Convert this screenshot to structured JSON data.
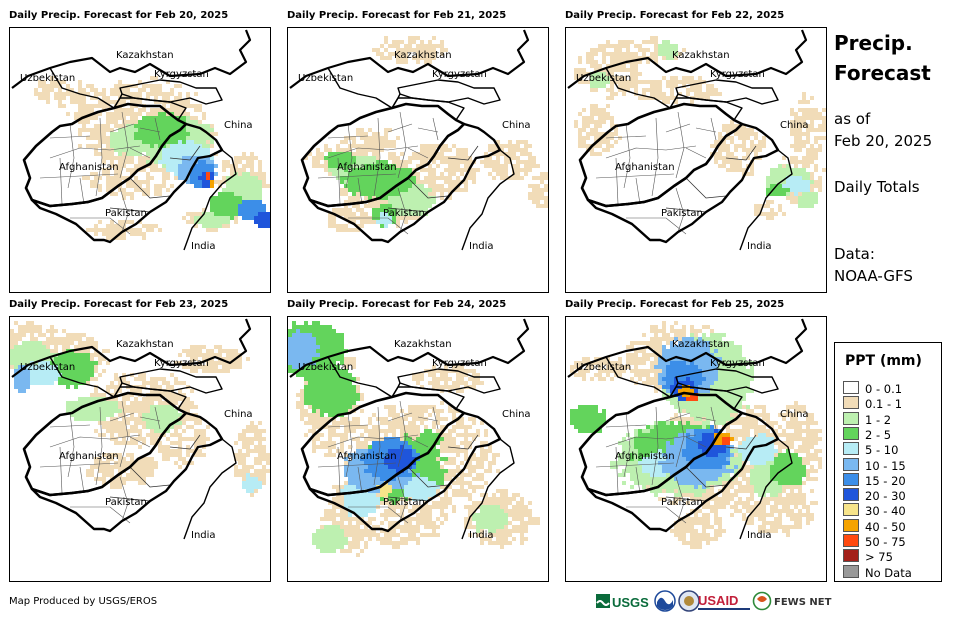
{
  "panels": [
    {
      "title": "Daily Precip. Forecast for Feb 20, 2025"
    },
    {
      "title": "Daily Precip. Forecast for Feb 21, 2025"
    },
    {
      "title": "Daily Precip. Forecast for Feb 22, 2025"
    },
    {
      "title": "Daily Precip. Forecast for Feb 23, 2025"
    },
    {
      "title": "Daily Precip. Forecast for Feb 24, 2025"
    },
    {
      "title": "Daily Precip. Forecast for Feb 25, 2025"
    }
  ],
  "map_labels": {
    "kazakhstan": "Kazakhstan",
    "uzbekistan": "Uzbekistan",
    "kyrgyzstan": "Kyrgyzstan",
    "china": "China",
    "afghanistan": "Afghanistan",
    "pakistan": "Pakistan",
    "india": "India"
  },
  "sidebar": {
    "title_line1": "Precip.",
    "title_line2": "Forecast",
    "asof_line1": "as of",
    "asof_line2": "Feb 20, 2025",
    "daily": "Daily Totals",
    "data_line1": "Data:",
    "data_line2": "NOAA-GFS"
  },
  "legend": {
    "title": "PPT (mm)",
    "items": [
      {
        "label": "0 - 0.1",
        "color": "#ffffff"
      },
      {
        "label": "0.1 - 1",
        "color": "#f1dcb8"
      },
      {
        "label": "1 - 2",
        "color": "#bdf0b0"
      },
      {
        "label": "2 - 5",
        "color": "#63d45c"
      },
      {
        "label": "5 - 10",
        "color": "#b7ecf5"
      },
      {
        "label": "10 - 15",
        "color": "#7ab8f0"
      },
      {
        "label": "15 - 20",
        "color": "#3c8ee8"
      },
      {
        "label": "20 - 30",
        "color": "#1f55db"
      },
      {
        "label": "30 - 40",
        "color": "#f7e48a"
      },
      {
        "label": "40 - 50",
        "color": "#f5a300"
      },
      {
        "label": "50 - 75",
        "color": "#ff4a10"
      },
      {
        "label": "> 75",
        "color": "#a3201a"
      },
      {
        "label": "No Data",
        "color": "#999999"
      }
    ]
  },
  "footer": {
    "credit": "Map Produced by USGS/EROS"
  },
  "logos": {
    "usgs": "USGS",
    "usaid": "USAID",
    "fewsnet": "FEWS NET",
    "usgs_icon": "usgs-logo-icon",
    "noaa_icon": "noaa-logo-icon",
    "dos_icon": "state-dept-seal-icon",
    "fewsnet_icon": "fewsnet-globe-icon"
  }
}
